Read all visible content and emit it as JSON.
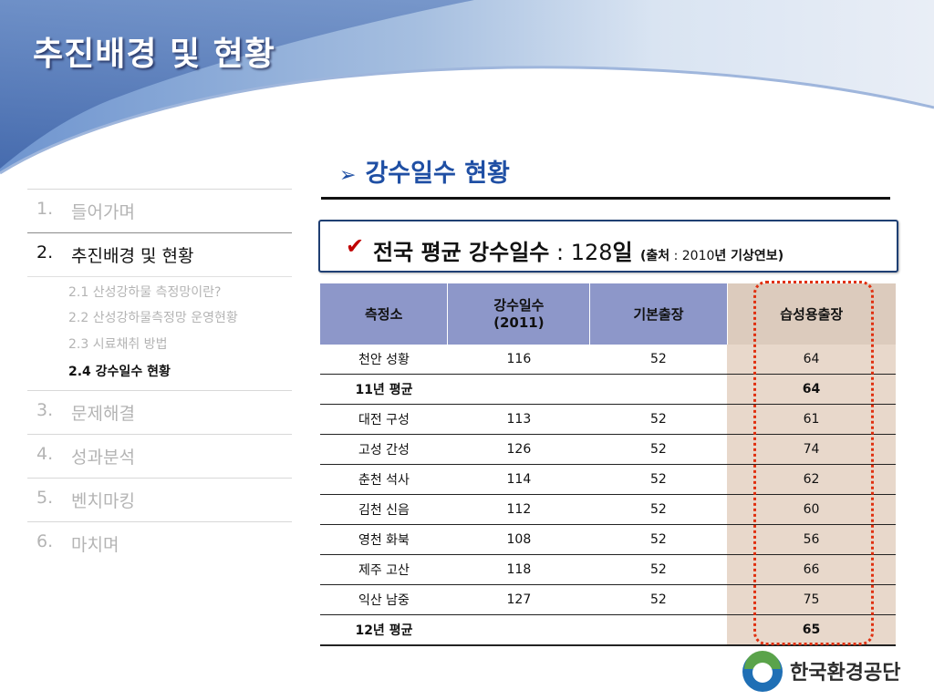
{
  "title": "추진배경 및 현황",
  "sidebar": {
    "items": [
      {
        "num": "1.",
        "label": "들어가며"
      },
      {
        "num": "2.",
        "label": "추진배경 및 현황"
      },
      {
        "num": "3.",
        "label": "문제해결"
      },
      {
        "num": "4.",
        "label": "성과분석"
      },
      {
        "num": "5.",
        "label": "벤치마킹"
      },
      {
        "num": "6.",
        "label": "마치며"
      }
    ],
    "subitems": [
      "2.1 산성강하물 측정망이란?",
      "2.2 산성강하물측정망 운영현황",
      "2.3 시료채취 방법",
      "2.4 강수일수 현황"
    ]
  },
  "section": {
    "arrow": "➢",
    "heading": "강수일수 현황"
  },
  "callout": {
    "check": "✔",
    "label": "전국 평균 강수일수",
    "colon": " : ",
    "value": "128",
    "unit": "일",
    "source_open": "(",
    "source_label": "출처",
    "source_colon": " : ",
    "source_year": "2010",
    "source_rest": "년 기상연보",
    "source_close": ")"
  },
  "table": {
    "headers": [
      "측정소",
      "강수일수\n(2011)",
      "기본출장",
      "습성용출장"
    ],
    "rows": [
      [
        "천안 성황",
        "116",
        "52",
        "64"
      ],
      [
        "11년 평균",
        "",
        "",
        "64"
      ],
      [
        "대전 구성",
        "113",
        "52",
        "61"
      ],
      [
        "고성 간성",
        "126",
        "52",
        "74"
      ],
      [
        "춘천 석사",
        "114",
        "52",
        "62"
      ],
      [
        "김천 신음",
        "112",
        "52",
        "60"
      ],
      [
        "영천 화북",
        "108",
        "52",
        "56"
      ],
      [
        "제주 고산",
        "118",
        "52",
        "66"
      ],
      [
        "익산 남중",
        "127",
        "52",
        "75"
      ],
      [
        "12년 평균",
        "",
        "",
        "65"
      ]
    ]
  },
  "logo": {
    "text": "한국환경공단",
    "icon": "korea-environment-corporation-logo-icon"
  },
  "colors": {
    "banner": "#5a86c4",
    "header_fill": "#8d97c9",
    "highlight_fill": "#e8d8cb",
    "dotted_outline": "#e03010",
    "heading_blue": "#1f4fa4"
  }
}
